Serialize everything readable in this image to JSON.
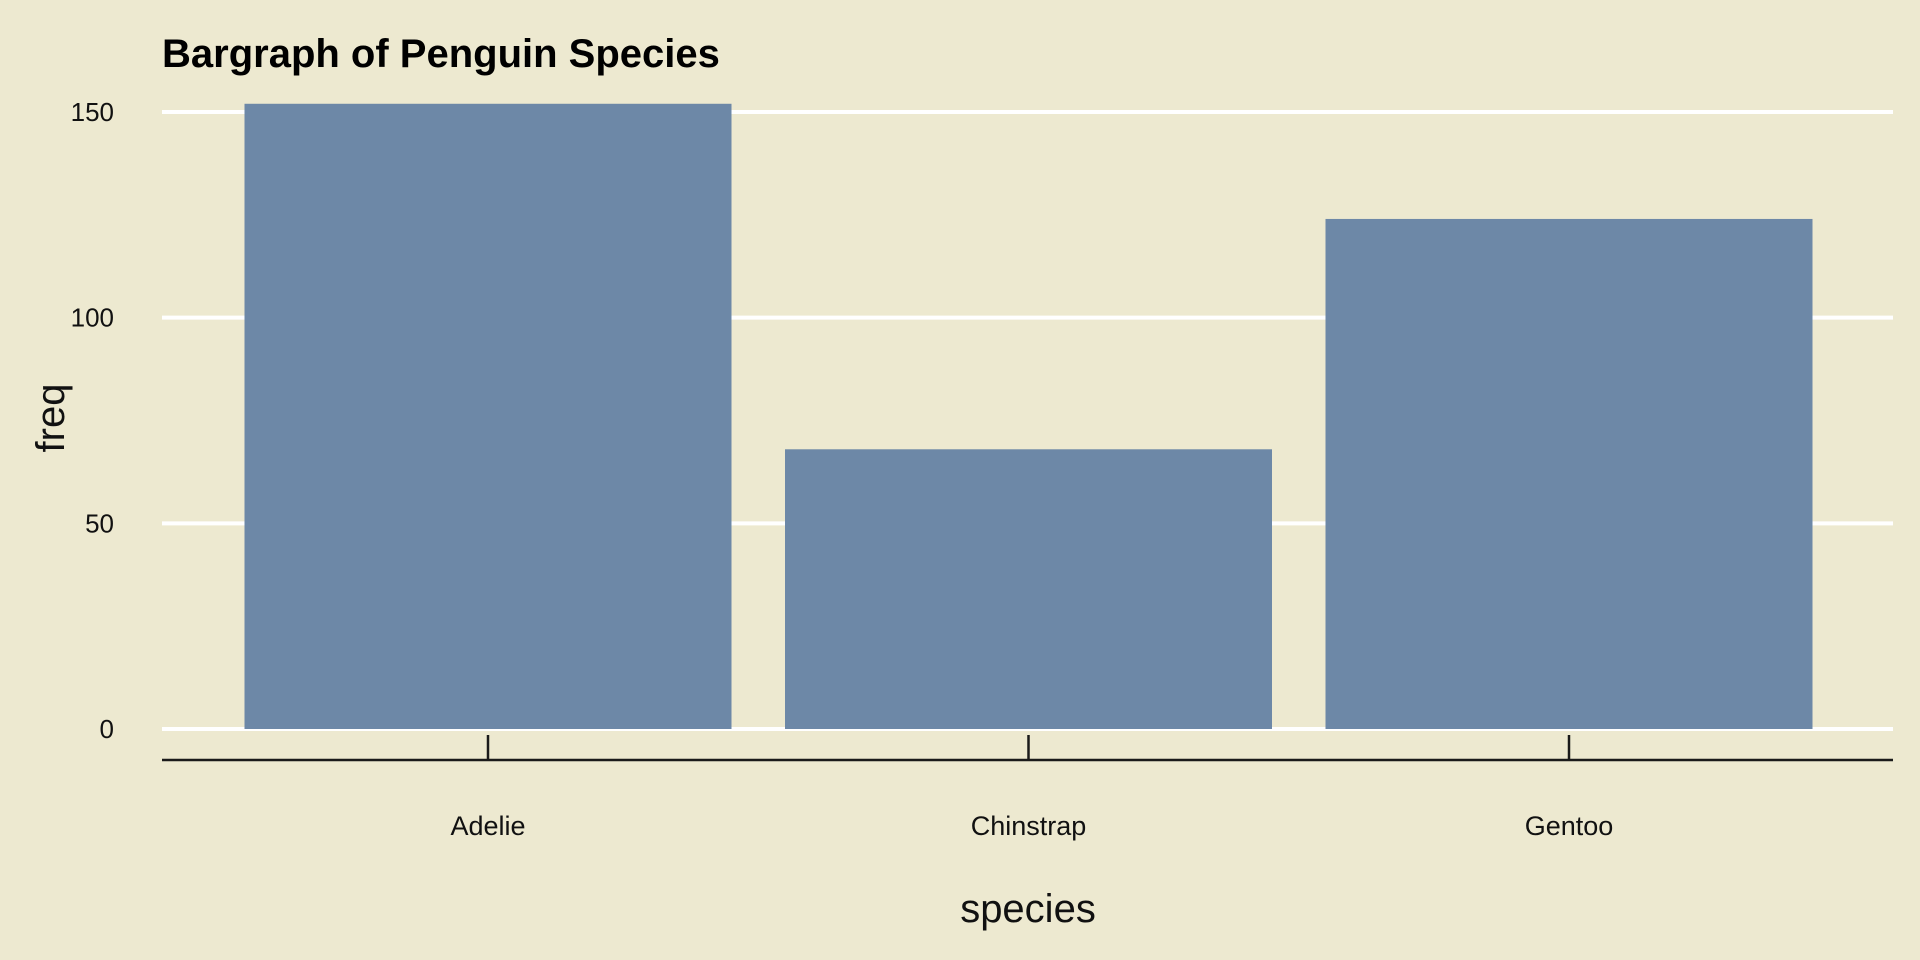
{
  "colors": {
    "background": "#ede9d0",
    "bar": "#6d88a7",
    "gridline": "#ffffff",
    "axis": "#1a1a1a",
    "text": "#111111"
  },
  "chart_data": {
    "type": "bar",
    "title": "Bargraph of Penguin Species",
    "xlabel": "species",
    "ylabel": "freq",
    "categories": [
      "Adelie",
      "Chinstrap",
      "Gentoo"
    ],
    "values": [
      152,
      68,
      124
    ],
    "ylim": [
      0,
      152
    ],
    "yticks": [
      0,
      50,
      100,
      150
    ],
    "ytick_labels": [
      "0",
      "50",
      "100",
      "150"
    ],
    "grid": "horizontal"
  }
}
